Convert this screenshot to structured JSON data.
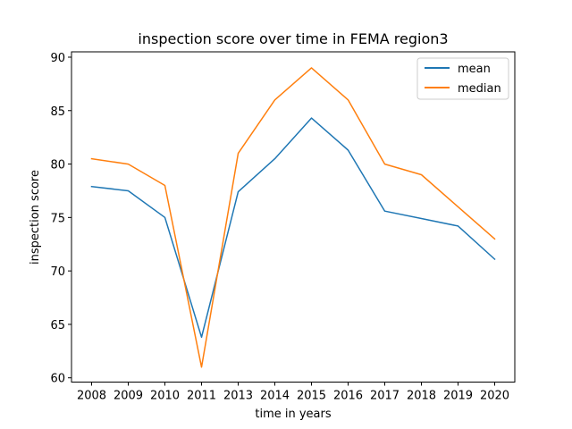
{
  "chart_data": {
    "type": "line",
    "title": "inspection score over time in FEMA region3",
    "xlabel": "time in years",
    "ylabel": "inspection score",
    "categories": [
      "2008",
      "2009",
      "2010",
      "2011",
      "2013",
      "2014",
      "2015",
      "2016",
      "2017",
      "2018",
      "2019",
      "2020"
    ],
    "y_ticks": [
      60,
      65,
      70,
      75,
      80,
      85,
      90
    ],
    "ylim": [
      59.6,
      90.5
    ],
    "grid": false,
    "legend_position": "top-right",
    "series": [
      {
        "name": "mean",
        "color": "#1f77b4",
        "values": [
          77.9,
          77.5,
          75.0,
          63.8,
          77.4,
          80.5,
          84.3,
          81.3,
          75.6,
          74.9,
          74.2,
          71.1
        ]
      },
      {
        "name": "median",
        "color": "#ff7f0e",
        "values": [
          80.5,
          80.0,
          78.0,
          61.0,
          81.0,
          86.0,
          89.0,
          86.0,
          80.0,
          79.0,
          76.0,
          73.0
        ]
      }
    ]
  }
}
